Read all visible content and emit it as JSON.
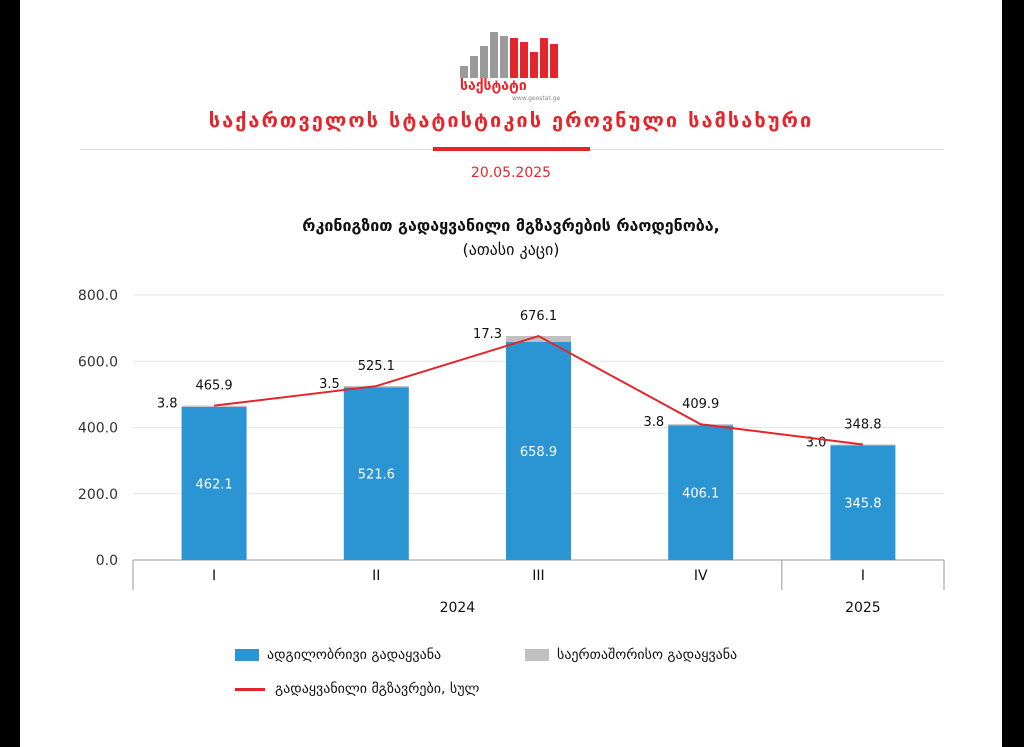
{
  "header": {
    "logo_text": "საქსტატი",
    "logo_url": "www.geostat.ge",
    "org_title": "საქართველოს სტატისტიკის ეროვნული სამსახური",
    "date": "20.05.2025"
  },
  "colors": {
    "accent": "#e3262b",
    "local": "#2b94d3",
    "international": "#c0c0c0",
    "total_line": "#e3262b"
  },
  "chart_data": {
    "type": "bar",
    "stacked": true,
    "title": "რკინიგზით გადაყვანილი მგზავრების რაოდენობა,",
    "subtitle": "(ათასი კაცი)",
    "categories": [
      "I",
      "II",
      "III",
      "IV",
      "I"
    ],
    "groups": [
      {
        "label": "2024",
        "span": [
          0,
          3
        ]
      },
      {
        "label": "2025",
        "span": [
          4,
          4
        ]
      }
    ],
    "series": [
      {
        "name": "ადგილობრივი გადაყვანა",
        "kind": "bar",
        "values": [
          462.1,
          521.6,
          658.9,
          406.1,
          345.8
        ]
      },
      {
        "name": "საერთაშორისო გადაყვანა",
        "kind": "bar",
        "values": [
          3.8,
          3.5,
          17.3,
          3.8,
          3.0
        ]
      },
      {
        "name": "გადაყვანილი მგზავრები, სულ",
        "kind": "line",
        "values": [
          465.9,
          525.1,
          676.1,
          409.9,
          348.8
        ]
      }
    ],
    "yticks": [
      "0.0",
      "200.0",
      "400.0",
      "600.0",
      "800.0"
    ],
    "ylim": [
      0,
      800
    ],
    "grid": true,
    "legend_position": "bottom"
  }
}
